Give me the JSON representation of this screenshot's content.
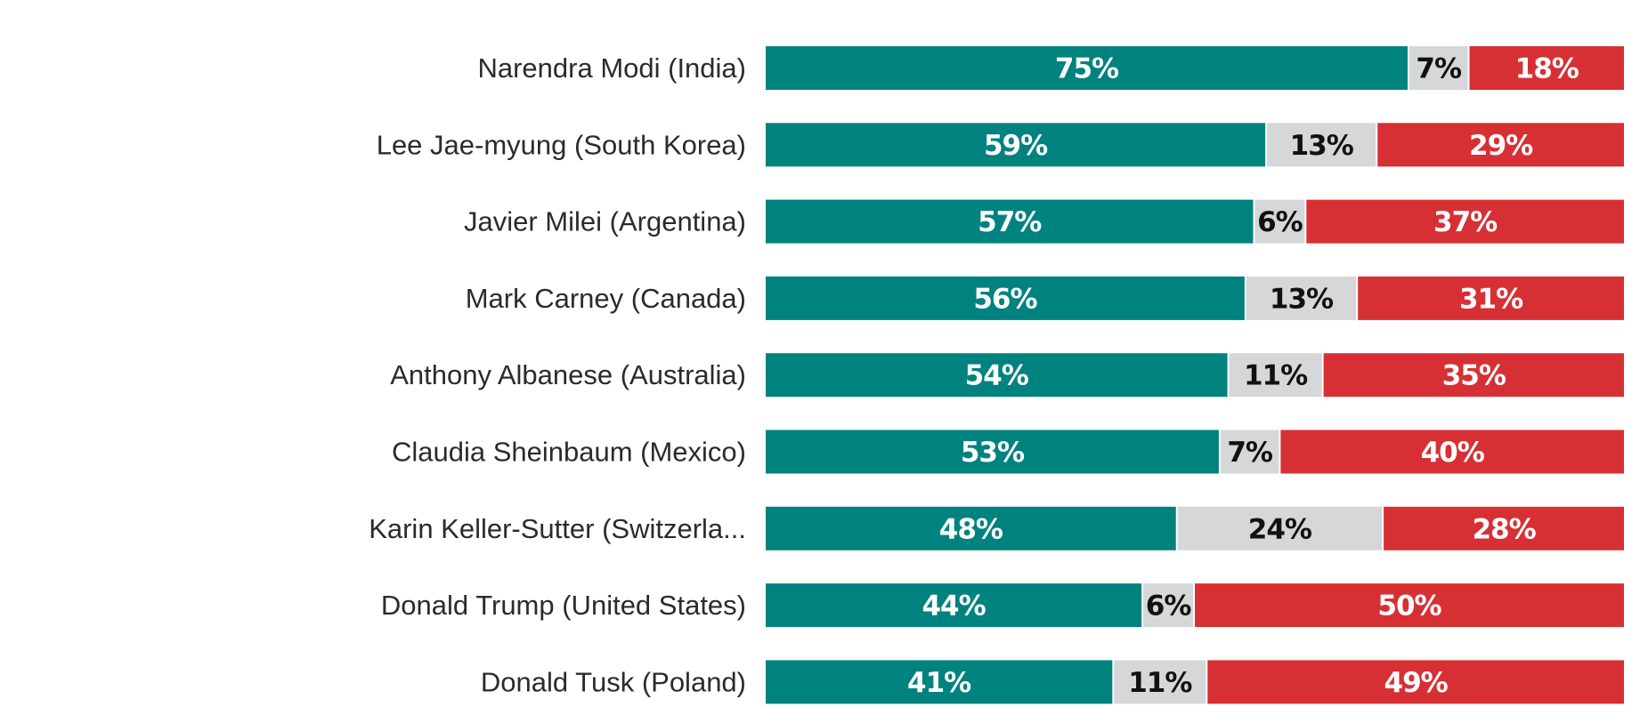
{
  "chart_data": {
    "type": "bar",
    "orientation": "horizontal",
    "stacked": true,
    "categories": [
      "Narendra Modi (India)",
      "Lee Jae-myung (South Korea)",
      "Javier Milei (Argentina)",
      "Mark Carney (Canada)",
      "Anthony Albanese (Australia)",
      "Claudia Sheinbaum (Mexico)",
      "Karin Keller-Sutter (Switzerla...",
      "Donald Trump (United States)",
      "Donald Tusk (Poland)"
    ],
    "series": [
      {
        "values": [
          75,
          59,
          57,
          56,
          54,
          53,
          48,
          44,
          41
        ],
        "labels": [
          "75%",
          "59%",
          "57%",
          "56%",
          "54%",
          "53%",
          "48%",
          "44%",
          "41%"
        ],
        "color": "#00827f",
        "label_color": "#ffffff"
      },
      {
        "values": [
          7,
          13,
          6,
          13,
          11,
          7,
          24,
          6,
          11
        ],
        "labels": [
          "7%",
          "13%",
          "6%",
          "13%",
          "11%",
          "7%",
          "24%",
          "6%",
          "11%"
        ],
        "color": "#d5d7d8",
        "label_color": "#111111"
      },
      {
        "values": [
          18,
          29,
          37,
          31,
          35,
          40,
          28,
          50,
          49
        ],
        "labels": [
          "18%",
          "29%",
          "37%",
          "31%",
          "35%",
          "40%",
          "28%",
          "50%",
          "49%"
        ],
        "color": "#d73034",
        "label_color": "#ffffff"
      }
    ],
    "xlim": [
      0,
      100
    ],
    "grid": false,
    "legend": "none"
  }
}
